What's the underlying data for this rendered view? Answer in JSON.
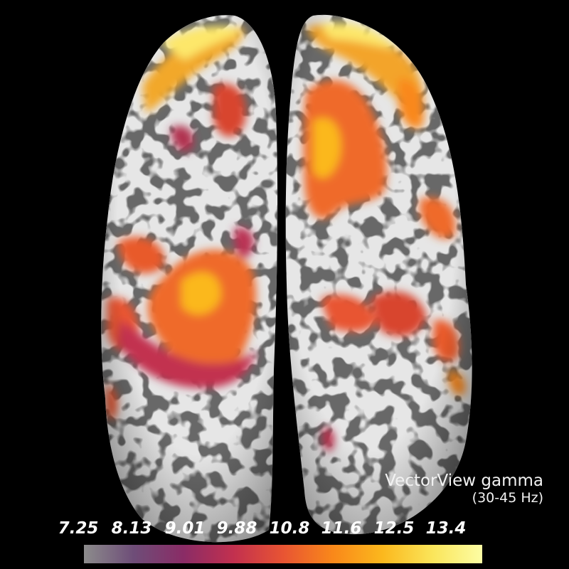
{
  "caption": {
    "line1": "VectorView gamma",
    "line2": "(30-45 Hz)"
  },
  "colorbar": {
    "ticks": [
      "7.25",
      "8.13",
      "9.01",
      "9.88",
      "10.8",
      "11.6",
      "12.5",
      "13.4"
    ],
    "colormap": [
      "#8c8c8c",
      "#6e4d78",
      "#8a2c66",
      "#c2304f",
      "#e85433",
      "#f9881a",
      "#fbb81d",
      "#fae55a",
      "#fcfda4"
    ]
  },
  "colors": {
    "background": "#000000",
    "cortex_gyri": "#e6e6e6",
    "cortex_sulci": "#666666",
    "activation_low": "#8a2c66",
    "activation_mid": "#ef6a2a",
    "activation_high": "#fde76a"
  }
}
